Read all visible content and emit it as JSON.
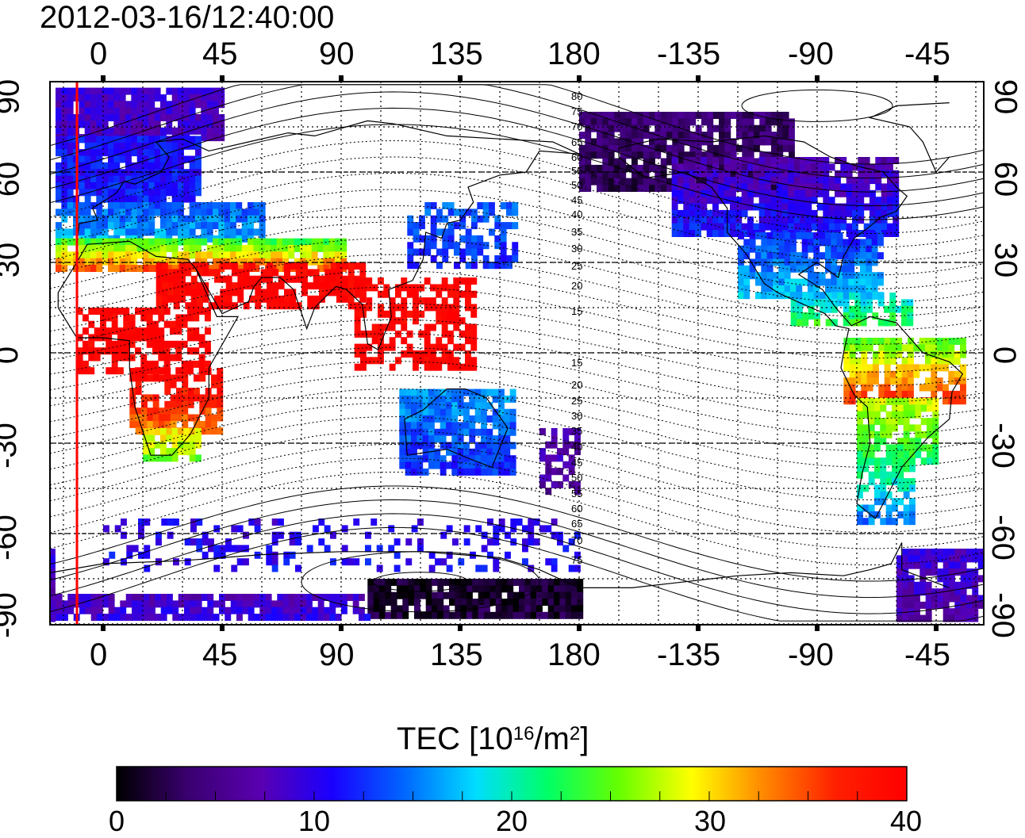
{
  "title": "2012-03-16/12:40:00",
  "map": {
    "lon_ticks": [
      "0",
      "45",
      "90",
      "135",
      "180",
      "-135",
      "-90",
      "-45"
    ],
    "lat_ticks": [
      "90",
      "60",
      "30",
      "0",
      "-30",
      "-60",
      "-90"
    ],
    "contour_labels": [
      "80",
      "75",
      "70",
      "65",
      "60",
      "55",
      "50",
      "45",
      "40",
      "35",
      "30",
      "25",
      "20",
      "15",
      "15",
      "20",
      "25",
      "30",
      "35",
      "40",
      "45",
      "50",
      "55",
      "60",
      "65",
      "70",
      "75"
    ],
    "terminator_color": "#ff0000"
  },
  "colorbar": {
    "title_main": "TEC  [10",
    "title_exp": "16",
    "title_unit": "/m",
    "title_exp2": "2",
    "title_end": "]",
    "ticks": [
      "0",
      "10",
      "20",
      "30",
      "40"
    ],
    "min": 0,
    "max": 40,
    "colors": [
      "#000000",
      "#3a0070",
      "#5a00b0",
      "#1a00ff",
      "#0066ff",
      "#00ddff",
      "#00ff66",
      "#66ff00",
      "#ffff00",
      "#ff8800",
      "#ff2000",
      "#ff0000"
    ]
  }
}
